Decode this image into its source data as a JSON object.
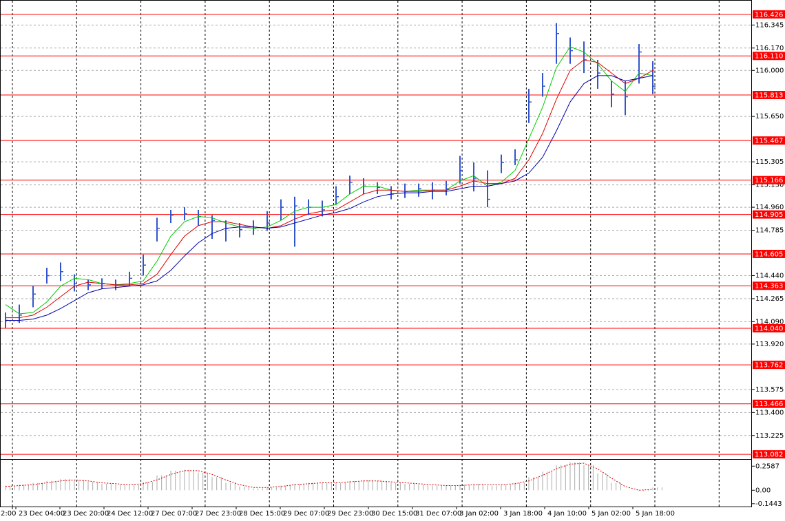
{
  "chart_data": {
    "type": "ohlc",
    "x_labels": [
      "2:00",
      "23 Dec 04:00",
      "23 Dec 20:00",
      "24 Dec 12:00",
      "27 Dec 07:00",
      "27 Dec 23:00",
      "28 Dec 15:00",
      "29 Dec 07:00",
      "29 Dec 23:00",
      "30 Dec 15:00",
      "31 Dec 07:00",
      "3 Jan 02:00",
      "3 Jan 18:00",
      "4 Jan 10:00",
      "5 Jan 02:00",
      "5 Jan 18:00"
    ],
    "bar_color": "#3355cc",
    "high": [
      114.16,
      114.22,
      114.36,
      114.5,
      114.54,
      114.45,
      114.41,
      114.42,
      114.41,
      114.47,
      114.6,
      114.88,
      114.94,
      114.96,
      114.94,
      114.9,
      114.86,
      114.84,
      114.86,
      114.93,
      115.02,
      115.04,
      115.02,
      115.01,
      115.12,
      115.2,
      115.18,
      115.15,
      115.12,
      115.14,
      115.14,
      115.15,
      115.16,
      115.35,
      115.3,
      115.24,
      115.36,
      115.4,
      115.86,
      115.98,
      116.36,
      116.25,
      116.22,
      116.08,
      115.92,
      115.92,
      116.2,
      116.07
    ],
    "low": [
      114.04,
      114.08,
      114.2,
      114.38,
      114.4,
      114.32,
      114.33,
      114.34,
      114.33,
      114.36,
      114.44,
      114.7,
      114.84,
      114.86,
      114.82,
      114.72,
      114.7,
      114.73,
      114.75,
      114.78,
      114.86,
      114.66,
      114.9,
      114.89,
      114.98,
      115.06,
      115.06,
      115.06,
      115.02,
      115.03,
      115.04,
      115.02,
      115.05,
      115.14,
      115.08,
      114.96,
      115.22,
      115.28,
      115.6,
      115.8,
      116.05,
      116.05,
      115.98,
      115.86,
      115.72,
      115.66,
      115.9,
      115.82
    ],
    "close": [
      114.1,
      114.14,
      114.3,
      114.44,
      114.47,
      114.38,
      114.37,
      114.38,
      114.37,
      114.42,
      114.52,
      114.8,
      114.9,
      114.91,
      114.89,
      114.86,
      114.8,
      114.79,
      114.8,
      114.84,
      114.96,
      114.97,
      114.96,
      114.94,
      115.04,
      115.15,
      115.12,
      115.11,
      115.06,
      115.08,
      115.1,
      115.09,
      115.1,
      115.24,
      115.18,
      115.02,
      115.3,
      115.32,
      115.76,
      115.88,
      116.28,
      116.15,
      116.08,
      115.98,
      115.82,
      115.8,
      116.14,
      115.88
    ],
    "series": [
      {
        "color": "#00cc00",
        "values": [
          114.22,
          114.15,
          114.16,
          114.24,
          114.36,
          114.42,
          114.41,
          114.38,
          114.37,
          114.38,
          114.4,
          114.55,
          114.74,
          114.85,
          114.89,
          114.88,
          114.84,
          114.81,
          114.8,
          114.81,
          114.86,
          114.93,
          114.96,
          114.96,
          114.98,
          115.06,
          115.12,
          115.12,
          115.09,
          115.08,
          115.09,
          115.09,
          115.09,
          115.16,
          115.2,
          115.12,
          115.15,
          115.24,
          115.48,
          115.72,
          116.02,
          116.18,
          116.14,
          116.05,
          115.92,
          115.84,
          115.98,
          115.96
        ]
      },
      {
        "color": "#dd0000",
        "values": [
          114.12,
          114.12,
          114.14,
          114.2,
          114.28,
          114.36,
          114.39,
          114.38,
          114.37,
          114.37,
          114.38,
          114.45,
          114.6,
          114.74,
          114.82,
          114.85,
          114.85,
          114.83,
          114.81,
          114.8,
          114.82,
          114.87,
          114.91,
          114.93,
          114.94,
          115.0,
          115.06,
          115.09,
          115.09,
          115.08,
          115.08,
          115.09,
          115.09,
          115.12,
          115.16,
          115.14,
          115.14,
          115.18,
          115.32,
          115.52,
          115.78,
          116.0,
          116.08,
          116.06,
          115.98,
          115.9,
          115.94,
          116.0
        ]
      },
      {
        "color": "#0000aa",
        "values": [
          114.1,
          114.1,
          114.11,
          114.14,
          114.19,
          114.25,
          114.31,
          114.34,
          114.35,
          114.36,
          114.37,
          114.4,
          114.48,
          114.59,
          114.69,
          114.76,
          114.8,
          114.81,
          114.81,
          114.8,
          114.81,
          114.84,
          114.87,
          114.9,
          114.92,
          114.95,
          115.0,
          115.04,
          115.06,
          115.07,
          115.07,
          115.08,
          115.08,
          115.1,
          115.12,
          115.12,
          115.14,
          115.16,
          115.22,
          115.34,
          115.54,
          115.76,
          115.9,
          115.96,
          115.96,
          115.92,
          115.94,
          115.96
        ]
      }
    ],
    "ylim": [
      113.046,
      116.535
    ],
    "yticks": [
      116.345,
      {
        "value": 116.17,
        "label": "116.170"
      },
      {
        "value": 116.0,
        "label": "116.000"
      },
      {
        "value": 115.65,
        "label": "115.650"
      },
      115.305,
      {
        "value": 115.13,
        "label": "115.130"
      },
      {
        "value": 114.96,
        "label": "114.960"
      },
      114.785,
      {
        "value": 114.44,
        "label": "114.440"
      },
      114.265,
      {
        "value": 114.09,
        "label": "114.090"
      },
      {
        "value": 113.92,
        "label": "113.920"
      },
      113.575,
      {
        "value": 113.4,
        "label": "113.400"
      },
      113.225
    ],
    "levels": [
      116.426,
      {
        "value": 116.11,
        "label": "116.110"
      },
      115.813,
      115.467,
      115.166,
      114.905,
      114.605,
      114.363,
      {
        "value": 114.04,
        "label": "114.040"
      },
      113.762,
      113.466,
      113.082
    ],
    "level_color": "#ff0000",
    "oscillator": {
      "hist_color": "#aaaaaa",
      "signal_color": "#dd0000",
      "values": [
        0.05,
        0.06,
        0.08,
        0.1,
        0.12,
        0.11,
        0.09,
        0.07,
        0.06,
        0.06,
        0.09,
        0.16,
        0.21,
        0.22,
        0.19,
        0.14,
        0.08,
        0.04,
        0.02,
        0.03,
        0.05,
        0.07,
        0.08,
        0.08,
        0.08,
        0.1,
        0.11,
        0.1,
        0.08,
        0.07,
        0.06,
        0.05,
        0.05,
        0.06,
        0.07,
        0.05,
        0.06,
        0.08,
        0.14,
        0.2,
        0.27,
        0.3,
        0.27,
        0.18,
        0.08,
        0.0,
        -0.01,
        0.03
      ],
      "signal": [
        0.04,
        0.05,
        0.06,
        0.08,
        0.1,
        0.11,
        0.1,
        0.08,
        0.07,
        0.06,
        0.07,
        0.11,
        0.17,
        0.21,
        0.21,
        0.17,
        0.11,
        0.06,
        0.03,
        0.03,
        0.04,
        0.06,
        0.07,
        0.08,
        0.08,
        0.09,
        0.1,
        0.1,
        0.09,
        0.08,
        0.07,
        0.06,
        0.05,
        0.05,
        0.06,
        0.06,
        0.06,
        0.07,
        0.1,
        0.16,
        0.23,
        0.28,
        0.29,
        0.23,
        0.13,
        0.04,
        0.0,
        0.01
      ],
      "ylim": [
        -0.175,
        0.32
      ],
      "yticks": [
        0.2587,
        {
          "value": 0,
          "label": "0.00"
        },
        -0.1443
      ]
    }
  }
}
